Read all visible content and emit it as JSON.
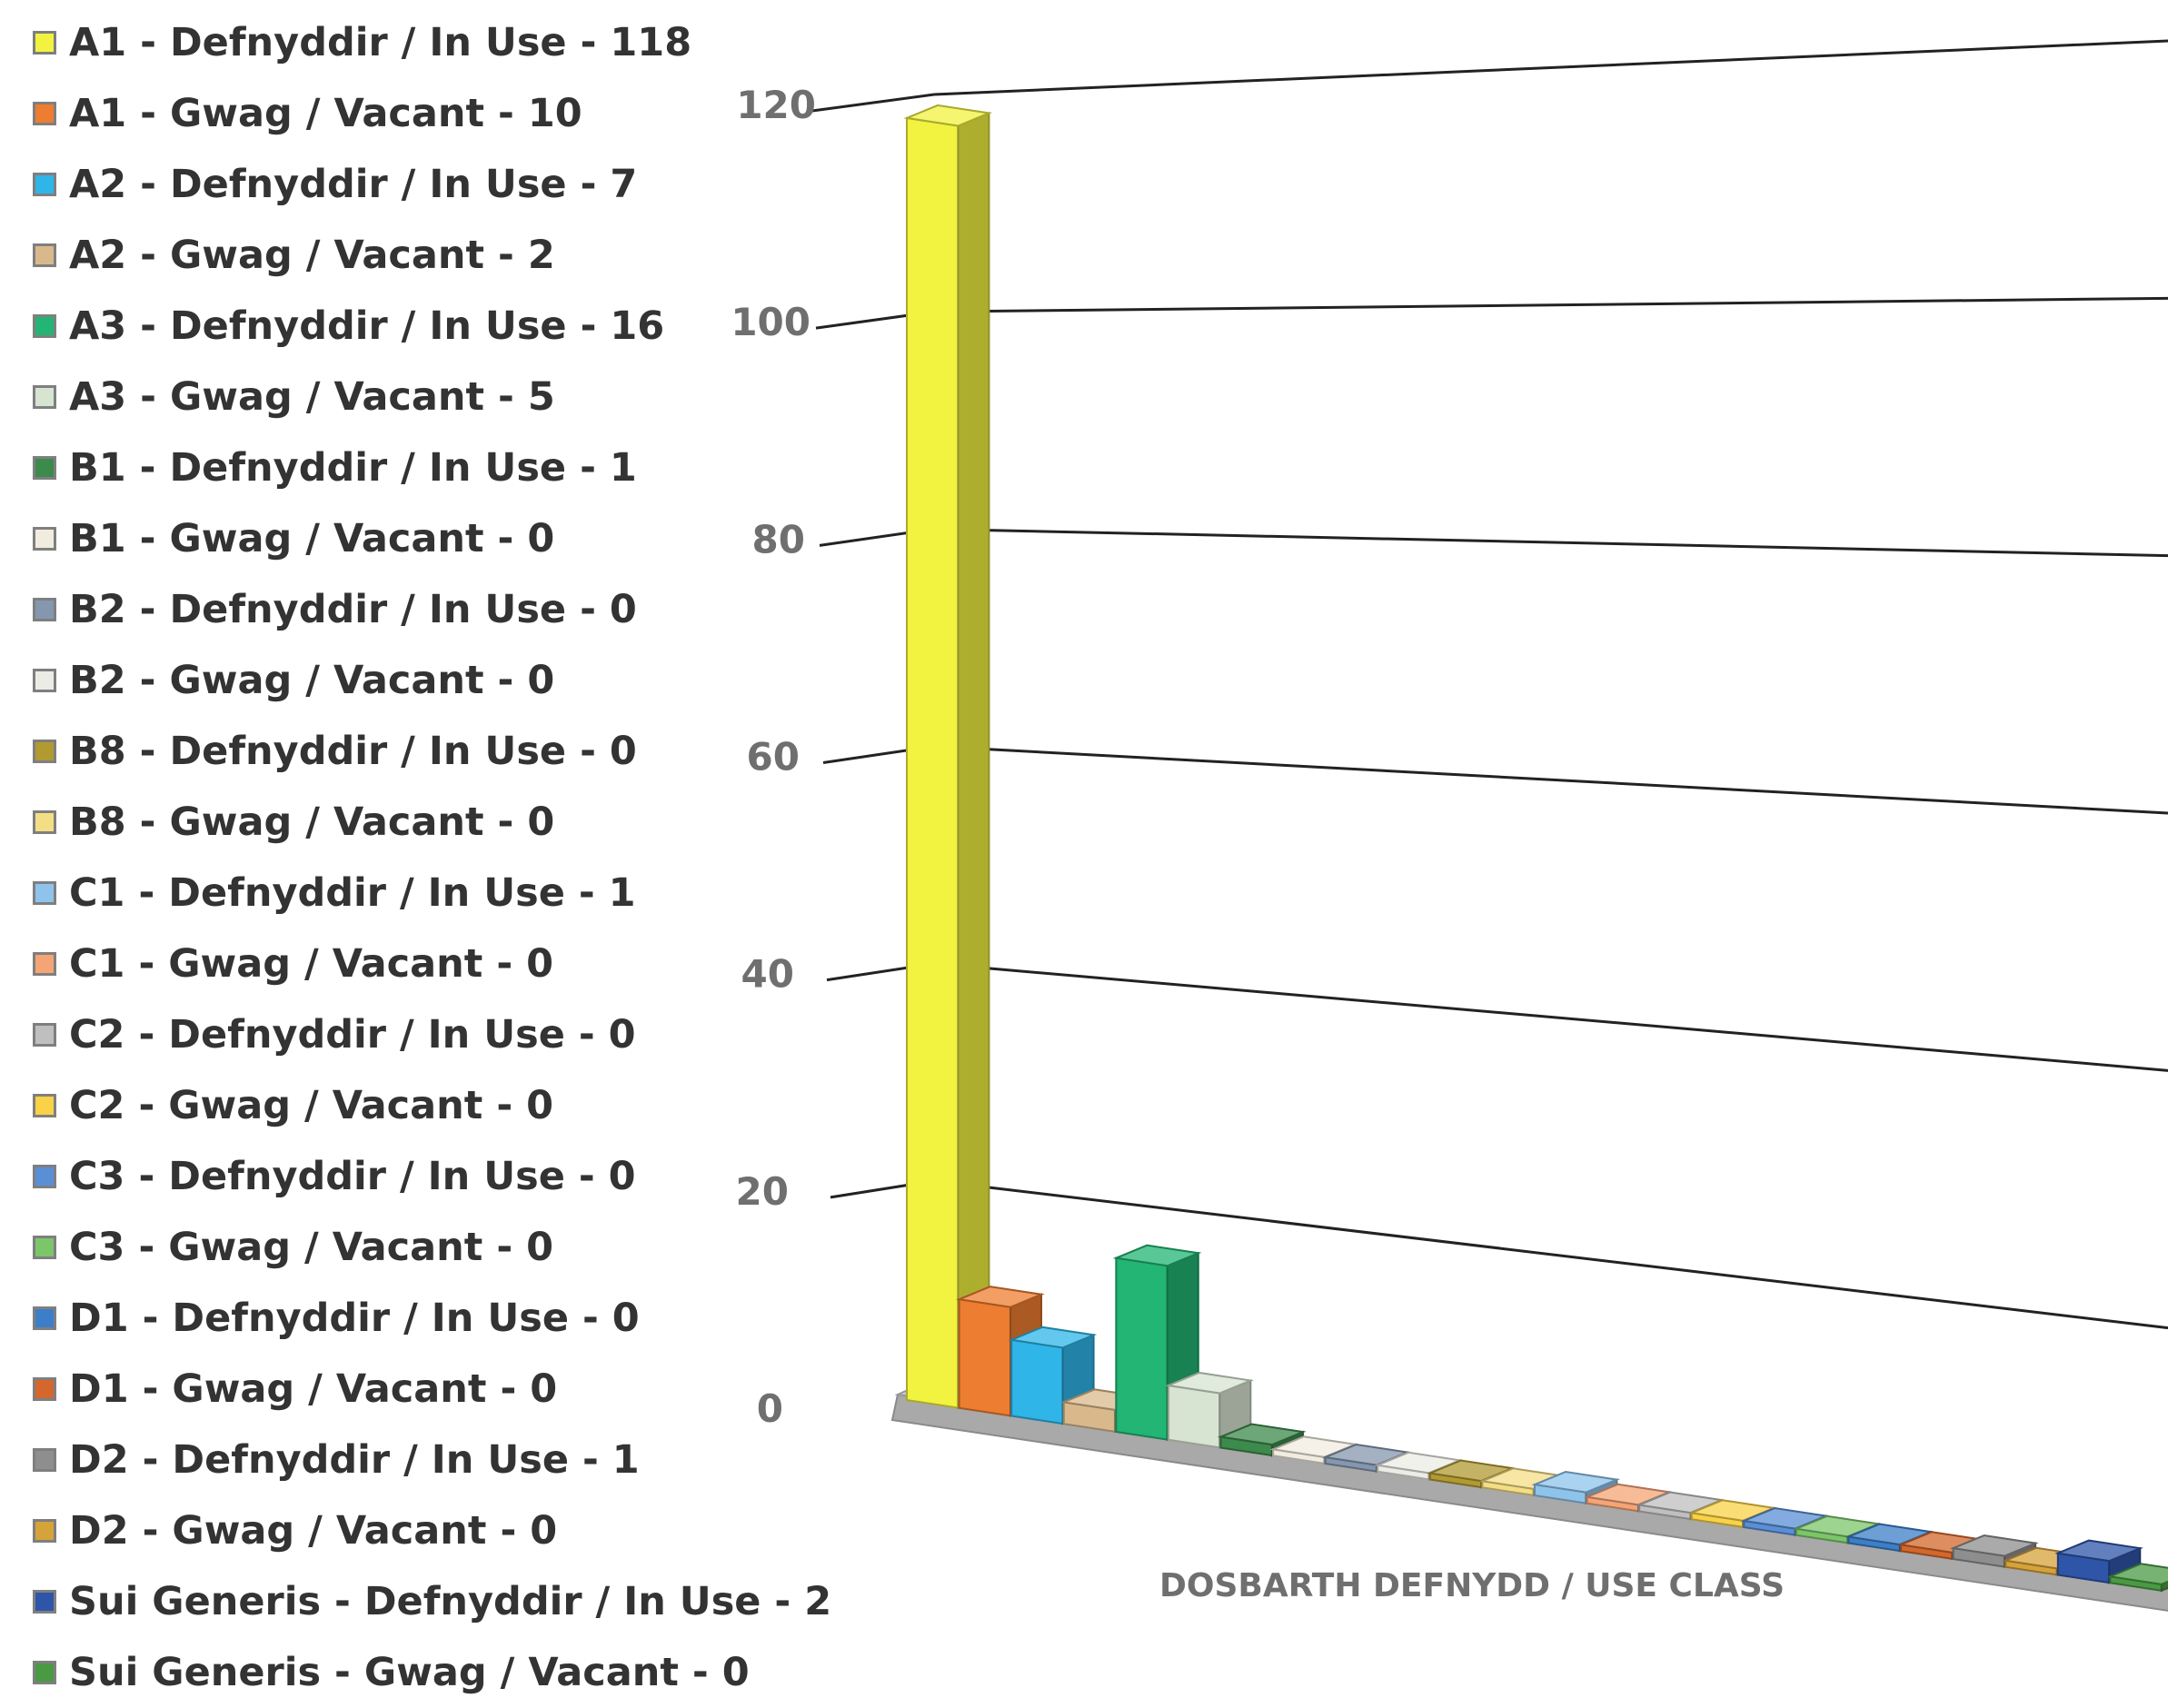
{
  "chart_data": {
    "type": "bar",
    "xlabel": "DOSBARTH DEFNYDD / USE CLASS",
    "ylabel": "",
    "ylim": [
      0,
      120
    ],
    "yticks": [
      0,
      20,
      40,
      60,
      80,
      100,
      120
    ],
    "grid": true,
    "legend_position": "left",
    "categories": [
      "A1 - Defnyddir / In Use - 118",
      "A1 - Gwag / Vacant - 10",
      "A2 - Defnyddir / In Use - 7",
      "A2 - Gwag / Vacant - 2",
      "A3 - Defnyddir / In Use - 16",
      "A3 - Gwag / Vacant - 5",
      "B1 - Defnyddir / In Use - 1",
      "B1 - Gwag / Vacant - 0",
      "B2 - Defnyddir / In Use - 0",
      "B2 - Gwag / Vacant - 0",
      "B8 - Defnyddir / In Use - 0",
      "B8 - Gwag / Vacant - 0",
      "C1 - Defnyddir / In Use - 1",
      "C1 - Gwag / Vacant - 0",
      "C2 - Defnyddir / In Use - 0",
      "C2 - Gwag / Vacant - 0",
      "C3 - Defnyddir / In Use - 0",
      "C3 - Gwag / Vacant - 0",
      "D1 - Defnyddir / In Use - 0",
      "D1 - Gwag / Vacant - 0",
      "D2 - Defnyddir / In Use - 1",
      "D2 - Gwag / Vacant - 0",
      "Sui Generis - Defnyddir / In Use - 2",
      "Sui Generis - Gwag / Vacant - 0"
    ],
    "values": [
      118,
      10,
      7,
      2,
      16,
      5,
      1,
      0,
      0,
      0,
      0,
      0,
      1,
      0,
      0,
      0,
      0,
      0,
      0,
      0,
      1,
      0,
      2,
      0
    ],
    "colors": [
      "#f2f240",
      "#ed7d31",
      "#2fb5e8",
      "#d9b98c",
      "#22b573",
      "#d7e4d1",
      "#3c8a4c",
      "#f2ece0",
      "#8597ae",
      "#ecece6",
      "#b29a32",
      "#f4de85",
      "#8ec4ec",
      "#f5a476",
      "#bfbfbf",
      "#f9d247",
      "#5a8fd6",
      "#7cc66a",
      "#3c7fc8",
      "#d3672c",
      "#8e8e8e",
      "#d6a23a",
      "#2f55a8",
      "#4a9a44"
    ]
  }
}
